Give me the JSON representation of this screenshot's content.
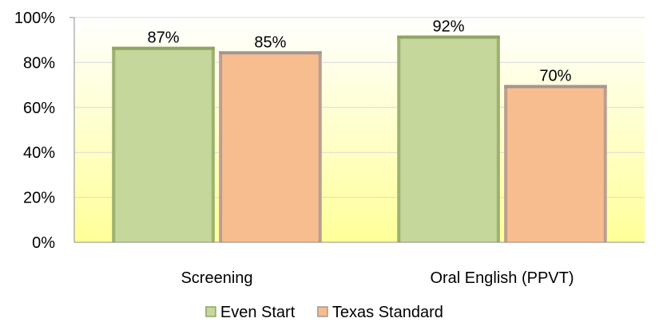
{
  "chart_data": {
    "type": "bar",
    "categories": [
      "Screening",
      "Oral English (PPVT)"
    ],
    "series": [
      {
        "name": "Even Start",
        "values": [
          87,
          92
        ],
        "labels": [
          "87%",
          "92%"
        ],
        "color": "#c5d79b",
        "edge_color": "#8ea561"
      },
      {
        "name": "Texas Standard",
        "values": [
          85,
          70
        ],
        "labels": [
          "85%",
          "70%"
        ],
        "color": "#f8bd8f",
        "edge_color": "#a69591"
      }
    ],
    "ylim": [
      0,
      100
    ],
    "yticks": [
      0,
      20,
      40,
      60,
      80,
      100
    ],
    "ytick_labels": [
      "0%",
      "20%",
      "40%",
      "60%",
      "80%",
      "100%"
    ],
    "grid": true,
    "legend_position": "bottom",
    "plot_background": {
      "top": "#ffffff",
      "bottom": "#ffff99"
    }
  }
}
